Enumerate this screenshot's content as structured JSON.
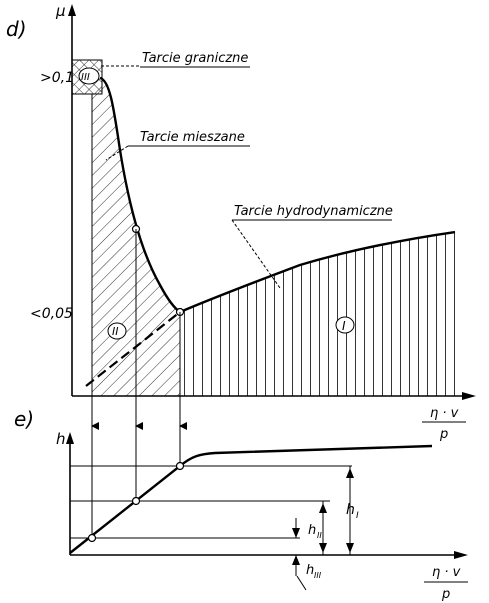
{
  "diagram": {
    "panel_d_label": "d)",
    "panel_e_label": "e)",
    "mu_axis_label": "μ",
    "h_axis_label": "h",
    "x_axis_label_num": "η · v",
    "x_axis_label_den": "p",
    "x_axis_label2_num": "η · v",
    "x_axis_label2_den": "p",
    "tick_high": ">0,1",
    "tick_low": "<0,05",
    "region_I": "I",
    "region_II": "II",
    "region_III": "III",
    "label_boundary": "Tarcie graniczne",
    "label_mixed": "Tarcie mieszane",
    "label_hydro": "Tarcie hydrodynamiczne",
    "h_I": "h",
    "h_I_sub": "I",
    "h_II": "h",
    "h_II_sub": "II",
    "h_III": "h",
    "h_III_sub": "III"
  }
}
